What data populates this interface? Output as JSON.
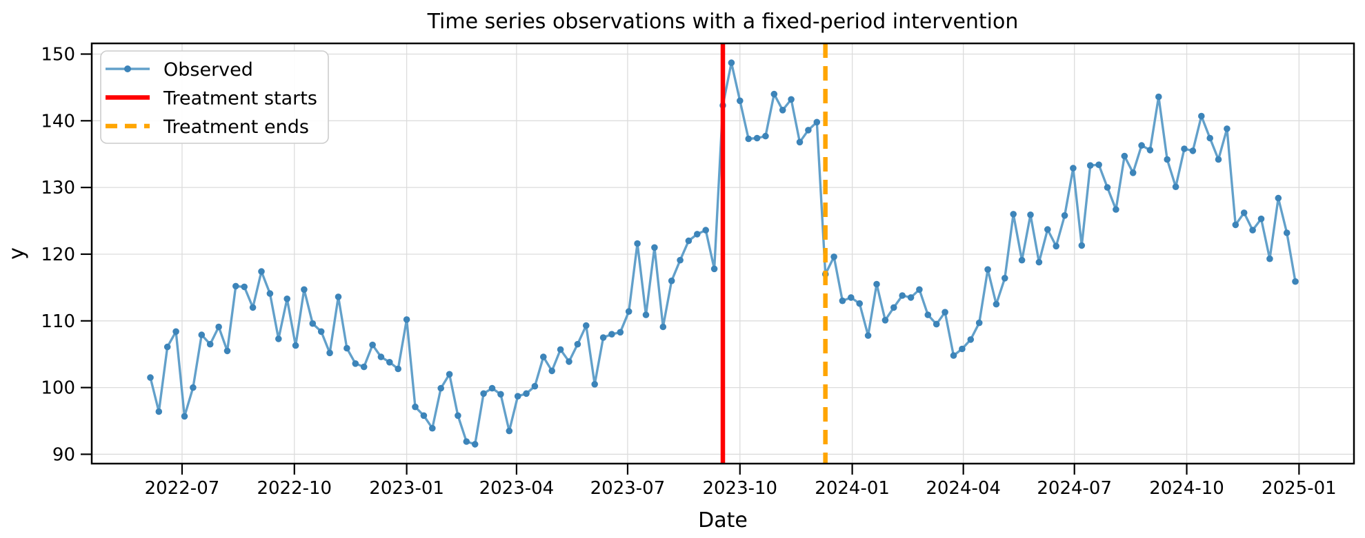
{
  "figure": {
    "title": "Time series observations with a fixed-period intervention",
    "x_label": "Date",
    "y_label": "y"
  },
  "legend": {
    "position": "upper left",
    "items": [
      {
        "label": "Observed",
        "type": "line-marker",
        "color": "#62a0ca",
        "marker_color": "#3c84b9"
      },
      {
        "label": "Treatment starts",
        "type": "solid",
        "color": "#ff0000"
      },
      {
        "label": "Treatment ends",
        "type": "dashed",
        "color": "#ffa500"
      }
    ]
  },
  "chart_data": {
    "type": "line",
    "title": "Time series observations with a fixed-period intervention",
    "xlabel": "Date",
    "ylabel": "y",
    "grid": true,
    "legend_position": "upper left",
    "xlim": [
      "2022-04-18",
      "2025-02-15"
    ],
    "ylim": [
      88.6,
      151.6
    ],
    "y_ticks": [
      90,
      100,
      110,
      120,
      130,
      140,
      150
    ],
    "x_ticks": [
      "2022-07-01",
      "2022-10-01",
      "2023-01-01",
      "2023-04-01",
      "2023-07-01",
      "2023-10-01",
      "2024-01-01",
      "2024-04-01",
      "2024-07-01",
      "2024-10-01",
      "2025-01-01"
    ],
    "x_tick_labels": [
      "2022-07",
      "2022-10",
      "2023-01",
      "2023-04",
      "2023-07",
      "2023-10",
      "2024-01",
      "2024-04",
      "2024-07",
      "2024-10",
      "2025-01"
    ],
    "x": [
      "2022-06-05",
      "2022-06-12",
      "2022-06-19",
      "2022-06-26",
      "2022-07-03",
      "2022-07-10",
      "2022-07-17",
      "2022-07-24",
      "2022-07-31",
      "2022-08-07",
      "2022-08-14",
      "2022-08-21",
      "2022-08-28",
      "2022-09-04",
      "2022-09-11",
      "2022-09-18",
      "2022-09-25",
      "2022-10-02",
      "2022-10-09",
      "2022-10-16",
      "2022-10-23",
      "2022-10-30",
      "2022-11-06",
      "2022-11-13",
      "2022-11-20",
      "2022-11-27",
      "2022-12-04",
      "2022-12-11",
      "2022-12-18",
      "2022-12-25",
      "2023-01-01",
      "2023-01-08",
      "2023-01-15",
      "2023-01-22",
      "2023-01-29",
      "2023-02-05",
      "2023-02-12",
      "2023-02-19",
      "2023-02-26",
      "2023-03-05",
      "2023-03-12",
      "2023-03-19",
      "2023-03-26",
      "2023-04-02",
      "2023-04-09",
      "2023-04-16",
      "2023-04-23",
      "2023-04-30",
      "2023-05-07",
      "2023-05-14",
      "2023-05-21",
      "2023-05-28",
      "2023-06-04",
      "2023-06-11",
      "2023-06-18",
      "2023-06-25",
      "2023-07-02",
      "2023-07-09",
      "2023-07-16",
      "2023-07-23",
      "2023-07-30",
      "2023-08-06",
      "2023-08-13",
      "2023-08-20",
      "2023-08-27",
      "2023-09-03",
      "2023-09-10",
      "2023-09-17",
      "2023-09-24",
      "2023-10-01",
      "2023-10-08",
      "2023-10-15",
      "2023-10-22",
      "2023-10-29",
      "2023-11-05",
      "2023-11-12",
      "2023-11-19",
      "2023-11-26",
      "2023-12-03",
      "2023-12-10",
      "2023-12-17",
      "2023-12-24",
      "2023-12-31",
      "2024-01-07",
      "2024-01-14",
      "2024-01-21",
      "2024-01-28",
      "2024-02-04",
      "2024-02-11",
      "2024-02-18",
      "2024-02-25",
      "2024-03-03",
      "2024-03-10",
      "2024-03-17",
      "2024-03-24",
      "2024-03-31",
      "2024-04-07",
      "2024-04-14",
      "2024-04-21",
      "2024-04-28",
      "2024-05-05",
      "2024-05-12",
      "2024-05-19",
      "2024-05-26",
      "2024-06-02",
      "2024-06-09",
      "2024-06-16",
      "2024-06-23",
      "2024-06-30",
      "2024-07-07",
      "2024-07-14",
      "2024-07-21",
      "2024-07-28",
      "2024-08-04",
      "2024-08-11",
      "2024-08-18",
      "2024-08-25",
      "2024-09-01",
      "2024-09-08",
      "2024-09-15",
      "2024-09-22",
      "2024-09-29",
      "2024-10-06",
      "2024-10-13",
      "2024-10-20",
      "2024-10-27",
      "2024-11-03",
      "2024-11-10",
      "2024-11-17",
      "2024-11-24",
      "2024-12-01",
      "2024-12-08",
      "2024-12-15",
      "2024-12-22",
      "2024-12-29"
    ],
    "series": [
      {
        "name": "Observed",
        "values": [
          101.5,
          96.4,
          106.1,
          108.4,
          95.7,
          100.0,
          107.9,
          106.5,
          109.1,
          105.5,
          115.2,
          115.1,
          112.0,
          117.4,
          114.1,
          107.3,
          113.3,
          106.3,
          114.7,
          109.6,
          108.4,
          105.2,
          113.6,
          105.9,
          103.6,
          103.1,
          106.4,
          104.6,
          103.8,
          102.8,
          110.2,
          97.1,
          95.8,
          93.9,
          99.9,
          102.0,
          95.8,
          91.9,
          91.5,
          99.1,
          99.9,
          99.0,
          93.5,
          98.7,
          99.1,
          100.2,
          104.6,
          102.5,
          105.7,
          103.9,
          106.5,
          109.3,
          100.5,
          107.5,
          108.0,
          108.3,
          111.4,
          121.6,
          110.9,
          121.0,
          109.1,
          116.0,
          119.1,
          122.0,
          123.0,
          123.6,
          117.8,
          142.3,
          148.7,
          143.0,
          137.3,
          137.4,
          137.7,
          144.0,
          141.6,
          143.2,
          136.8,
          138.6,
          139.8,
          117.0,
          119.6,
          113.0,
          113.5,
          112.6,
          107.8,
          115.5,
          110.1,
          112.0,
          113.8,
          113.5,
          114.7,
          110.9,
          109.5,
          111.3,
          104.8,
          105.8,
          107.2,
          109.7,
          117.7,
          112.5,
          116.4,
          126.0,
          119.1,
          125.9,
          118.8,
          123.7,
          121.2,
          125.8,
          132.9,
          121.3,
          133.3,
          133.4,
          130.0,
          126.7,
          134.7,
          132.2,
          136.3,
          135.6,
          143.6,
          134.2,
          130.1,
          135.8,
          135.5,
          140.7,
          137.4,
          134.2,
          138.8,
          124.4,
          126.2,
          123.6,
          125.3,
          119.3,
          128.4,
          123.2,
          115.9
        ]
      }
    ],
    "vlines": [
      {
        "name": "Treatment starts",
        "date": "2023-09-17",
        "style": "solid",
        "color": "#ff0000"
      },
      {
        "name": "Treatment ends",
        "date": "2023-12-10",
        "style": "dashed",
        "color": "#ffa500"
      }
    ],
    "style": {
      "line_color": "#62a0ca",
      "marker_color": "#3c84b9",
      "grid_color": "#dcdcdc",
      "spine_color": "#000000"
    }
  }
}
